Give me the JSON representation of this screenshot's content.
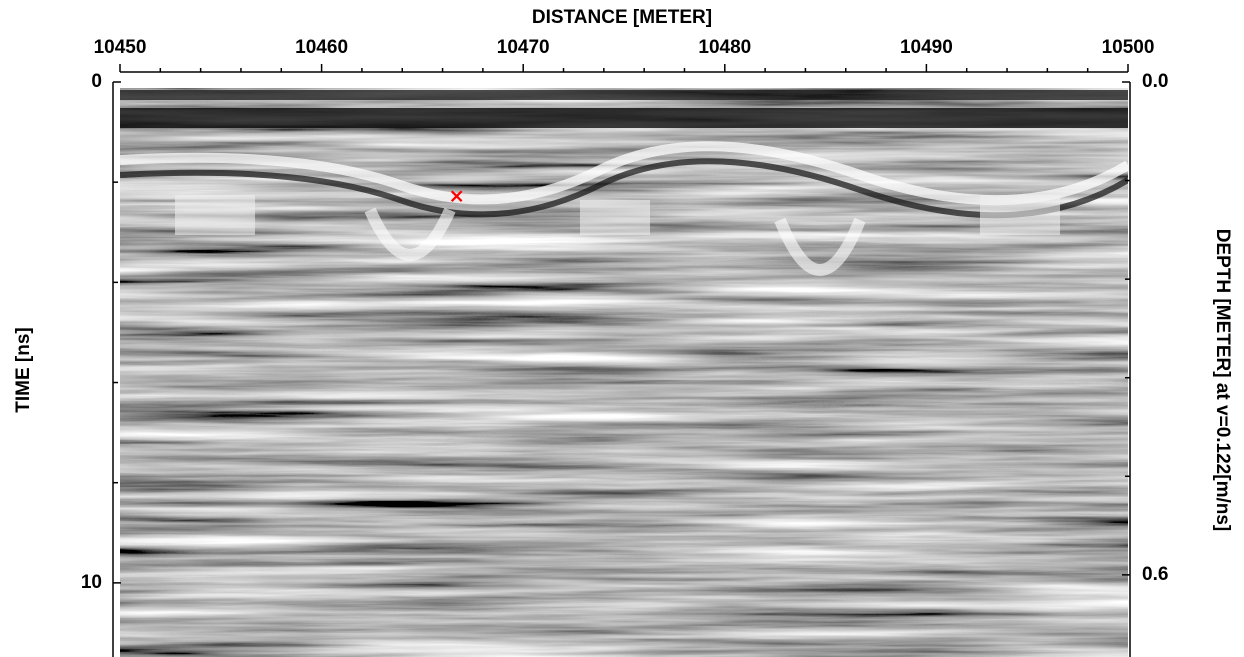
{
  "chart_data": {
    "type": "radargram",
    "title": "DISTANCE [METER]",
    "y_label": "TIME [ns]",
    "y2_label": "DEPTH [METER] at v=0.122[m/ns]",
    "xlim": [
      10450,
      10500
    ],
    "xticks": [
      10450,
      10460,
      10470,
      10480,
      10490,
      10500
    ],
    "xminorticks": [
      10452,
      10454,
      10456,
      10458,
      10462,
      10464,
      10466,
      10468,
      10472,
      10474,
      10476,
      10478,
      10482,
      10484,
      10486,
      10488,
      10492,
      10494,
      10496,
      10498
    ],
    "ylim": [
      0,
      11.48
    ],
    "yticks": [
      0,
      10
    ],
    "yminorticks": [
      2,
      4,
      6,
      8
    ],
    "y2lim": [
      0,
      0.7
    ],
    "y2ticks": [
      {
        "value": 0,
        "label": "0.0"
      },
      0.6
    ],
    "y2minorticks": [
      0.12,
      0.24,
      0.36,
      0.48
    ],
    "marker": {
      "x": 10466.7,
      "y": 2.28,
      "color": "#ff0000"
    }
  }
}
